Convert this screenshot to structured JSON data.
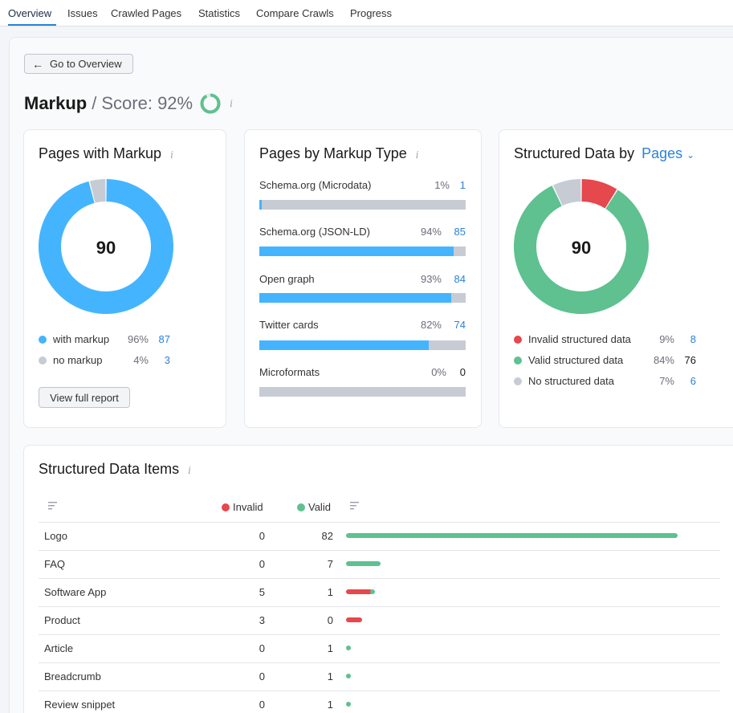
{
  "tabs": [
    "Overview",
    "Issues",
    "Crawled Pages",
    "Statistics",
    "Compare Crawls",
    "Progress"
  ],
  "back_button": "Go to Overview",
  "page": {
    "title": "Markup",
    "separator": "/",
    "score_label": "Score: 92%",
    "score_value": 92
  },
  "colors": {
    "blue": "#45b4ff",
    "gray": "#c7cbd4",
    "green": "#5ec18f",
    "red": "#e5484d",
    "link": "#2b82d9"
  },
  "pages_with_markup": {
    "title": "Pages with Markup",
    "center": "90",
    "legend": [
      {
        "label": "with markup",
        "pct": "96%",
        "count": "87",
        "color": "#45b4ff",
        "fraction": 0.96
      },
      {
        "label": "no markup",
        "pct": "4%",
        "count": "3",
        "color": "#c7cbd4",
        "fraction": 0.04
      }
    ],
    "view_button": "View full report"
  },
  "pages_by_type": {
    "title": "Pages by Markup Type",
    "items": [
      {
        "label": "Schema.org (Microdata)",
        "pct": "1%",
        "count": "1",
        "fraction": 0.01
      },
      {
        "label": "Schema.org (JSON-LD)",
        "pct": "94%",
        "count": "85",
        "fraction": 0.94
      },
      {
        "label": "Open graph",
        "pct": "93%",
        "count": "84",
        "fraction": 0.93
      },
      {
        "label": "Twitter cards",
        "pct": "82%",
        "count": "74",
        "fraction": 0.82
      },
      {
        "label": "Microformats",
        "pct": "0%",
        "count": "0",
        "fraction": 0
      }
    ]
  },
  "structured_data": {
    "title": "Structured Data by",
    "dropdown": "Pages",
    "center": "90",
    "legend": [
      {
        "label": "Invalid structured data",
        "pct": "9%",
        "count": "8",
        "color": "#e5484d",
        "fraction": 0.09
      },
      {
        "label": "Valid structured data",
        "pct": "84%",
        "count": "76",
        "color": "#5ec18f",
        "fraction": 0.84
      },
      {
        "label": "No structured data",
        "pct": "7%",
        "count": "6",
        "color": "#c7cbd4",
        "fraction": 0.07
      }
    ]
  },
  "items_table": {
    "title": "Structured Data Items",
    "col_invalid": "Invalid",
    "col_valid": "Valid",
    "rows": [
      {
        "name": "Logo",
        "invalid": "0",
        "valid": "82"
      },
      {
        "name": "FAQ",
        "invalid": "0",
        "valid": "7"
      },
      {
        "name": "Software App",
        "invalid": "5",
        "valid": "1"
      },
      {
        "name": "Product",
        "invalid": "3",
        "valid": "0"
      },
      {
        "name": "Article",
        "invalid": "0",
        "valid": "1"
      },
      {
        "name": "Breadcrumb",
        "invalid": "0",
        "valid": "1"
      },
      {
        "name": "Review snippet",
        "invalid": "0",
        "valid": "1"
      }
    ]
  }
}
